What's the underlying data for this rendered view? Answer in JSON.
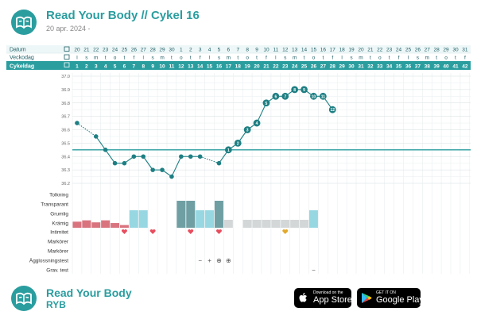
{
  "header": {
    "title": "Read Your Body // Cykel 16",
    "subtitle": "20 apr. 2024 -"
  },
  "row_labels": {
    "date": "Datum",
    "weekday": "Veckodag",
    "cycleday": "Cykeldag"
  },
  "dates": [
    "20",
    "21",
    "22",
    "23",
    "24",
    "25",
    "26",
    "27",
    "28",
    "29",
    "30",
    "1",
    "2",
    "3",
    "4",
    "5",
    "6",
    "7",
    "8",
    "9",
    "10",
    "11",
    "12",
    "13",
    "14",
    "15",
    "16",
    "17",
    "18",
    "19",
    "20",
    "21",
    "22",
    "23",
    "24",
    "25",
    "26",
    "27",
    "28",
    "29",
    "30",
    "31"
  ],
  "weekdays": [
    "l",
    "s",
    "m",
    "t",
    "o",
    "t",
    "f",
    "l",
    "s",
    "m",
    "t",
    "o",
    "t",
    "f",
    "l",
    "s",
    "m",
    "t",
    "o",
    "t",
    "f",
    "l",
    "s",
    "m",
    "t",
    "o",
    "t",
    "f",
    "l",
    "s",
    "m",
    "t",
    "o",
    "t",
    "f",
    "l",
    "s",
    "m",
    "t",
    "o",
    "t",
    "f"
  ],
  "cycle_days": [
    "1",
    "2",
    "3",
    "4",
    "5",
    "6",
    "7",
    "8",
    "9",
    "10",
    "11",
    "12",
    "13",
    "14",
    "15",
    "16",
    "17",
    "18",
    "19",
    "20",
    "21",
    "22",
    "23",
    "24",
    "25",
    "26",
    "27",
    "28",
    "29",
    "30",
    "31",
    "32",
    "33",
    "34",
    "35",
    "36",
    "37",
    "38",
    "39",
    "40",
    "41",
    "42"
  ],
  "temp_axis": {
    "min": 36.2,
    "max": 37.0,
    "ticks": [
      "37.0",
      "36.9",
      "36.8",
      "36.7",
      "36.6",
      "36.5",
      "36.4",
      "36.3",
      "36.2"
    ],
    "coverline": 36.45
  },
  "temperatures": [
    {
      "day": 1,
      "value": 36.65,
      "dashed_to_next": true
    },
    {
      "day": 3,
      "value": 36.55,
      "dashed_to_next": false
    },
    {
      "day": 4,
      "value": 36.45
    },
    {
      "day": 5,
      "value": 36.35
    },
    {
      "day": 6,
      "value": 36.35
    },
    {
      "day": 7,
      "value": 36.4
    },
    {
      "day": 8,
      "value": 36.4
    },
    {
      "day": 9,
      "value": 36.3
    },
    {
      "day": 10,
      "value": 36.3
    },
    {
      "day": 11,
      "value": 36.25
    },
    {
      "day": 12,
      "value": 36.4
    },
    {
      "day": 13,
      "value": 36.4
    },
    {
      "day": 14,
      "value": 36.4,
      "dashed_to_next": true
    },
    {
      "day": 16,
      "value": 36.35
    },
    {
      "day": 17,
      "value": 36.45,
      "label": "1"
    },
    {
      "day": 18,
      "value": 36.5,
      "label": "2"
    },
    {
      "day": 19,
      "value": 36.6,
      "label": "3"
    },
    {
      "day": 20,
      "value": 36.65,
      "label": "4"
    },
    {
      "day": 21,
      "value": 36.8,
      "label": "5"
    },
    {
      "day": 22,
      "value": 36.85,
      "label": "6"
    },
    {
      "day": 23,
      "value": 36.85,
      "label": "7"
    },
    {
      "day": 24,
      "value": 36.9,
      "label": "8"
    },
    {
      "day": 25,
      "value": 36.9,
      "label": "9"
    },
    {
      "day": 26,
      "value": 36.85,
      "label": "10"
    },
    {
      "day": 27,
      "value": 36.85,
      "label": "11"
    },
    {
      "day": 28,
      "value": 36.75,
      "label": "12"
    }
  ],
  "obs_labels": [
    "Tolkning",
    "Transparant",
    "Grumlig",
    "Krämig",
    "Intimitet",
    "Markörer",
    "Markörer",
    "Ägglossningstest",
    "Grav. test"
  ],
  "bleeding": [
    0.45,
    0.55,
    0.4,
    0.55,
    0.35,
    0.2
  ],
  "mucus": [
    {
      "day": 7,
      "level": 2
    },
    {
      "day": 8,
      "level": 2
    },
    {
      "day": 12,
      "level": 3
    },
    {
      "day": 13,
      "level": 3
    },
    {
      "day": 14,
      "level": 2
    },
    {
      "day": 15,
      "level": 2
    },
    {
      "day": 16,
      "level": 3
    },
    {
      "day": 17,
      "level": 1
    },
    {
      "day": 19,
      "level": 1
    },
    {
      "day": 20,
      "level": 1
    },
    {
      "day": 21,
      "level": 1
    },
    {
      "day": 22,
      "level": 1
    },
    {
      "day": 23,
      "level": 1
    },
    {
      "day": 24,
      "level": 1
    },
    {
      "day": 25,
      "level": 1
    },
    {
      "day": 26,
      "level": 2
    }
  ],
  "intimacy": [
    {
      "day": 6,
      "kind": "heart"
    },
    {
      "day": 9,
      "kind": "heart"
    },
    {
      "day": 13,
      "kind": "heart"
    },
    {
      "day": 16,
      "kind": "heart"
    },
    {
      "day": 23,
      "kind": "heart-gold"
    }
  ],
  "ovulation_tests": [
    {
      "day": 14,
      "symbol": "−"
    },
    {
      "day": 15,
      "symbol": "+"
    },
    {
      "day": 16,
      "symbol": "⊕"
    },
    {
      "day": 17,
      "symbol": "⊕"
    }
  ],
  "pregnancy_tests": [
    {
      "day": 26,
      "symbol": "−"
    }
  ],
  "colors": {
    "teal": "#2a9d9f",
    "teal_dark": "#1e7f83",
    "bleed": "#d9747f",
    "mucus1": "#d3d7d8",
    "mucus2": "#97d7e2",
    "mucus3": "#6f9fa3",
    "heart": "#e84d5e",
    "gold": "#e3a92a"
  },
  "footer": {
    "title": "Read Your Body",
    "subtitle": "RYB"
  },
  "stores": {
    "apple_small": "Download on the",
    "apple_large": "App Store",
    "google_small": "GET IT ON",
    "google_large": "Google Play"
  }
}
